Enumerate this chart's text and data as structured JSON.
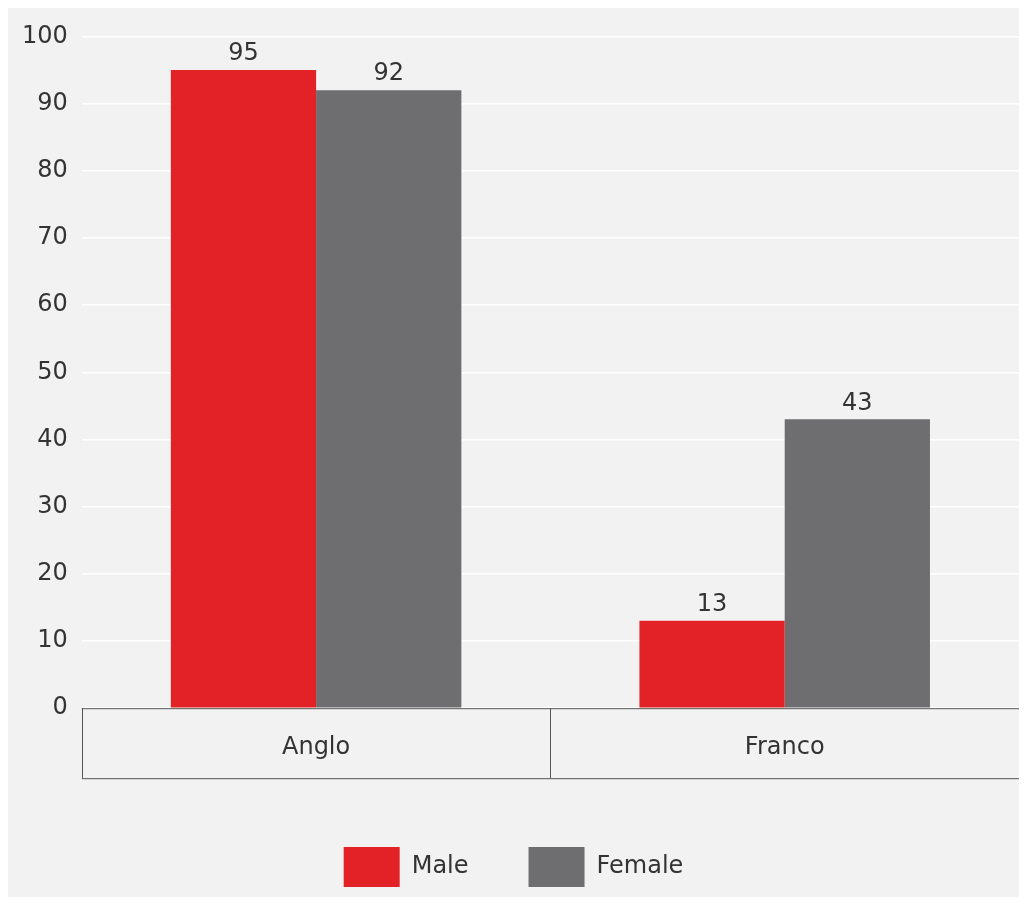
{
  "chart_data": {
    "type": "bar",
    "categories": [
      "Anglo",
      "Franco"
    ],
    "series": [
      {
        "name": "Male",
        "color": "#e32228",
        "values": [
          95,
          13
        ]
      },
      {
        "name": "Female",
        "color": "#6e6e70",
        "values": [
          92,
          43
        ]
      }
    ],
    "ylim": [
      0,
      100
    ],
    "yticks": [
      0,
      10,
      20,
      30,
      40,
      50,
      60,
      70,
      80,
      90,
      100
    ],
    "grid": "y",
    "data_labels": true,
    "legend": "bottom"
  }
}
